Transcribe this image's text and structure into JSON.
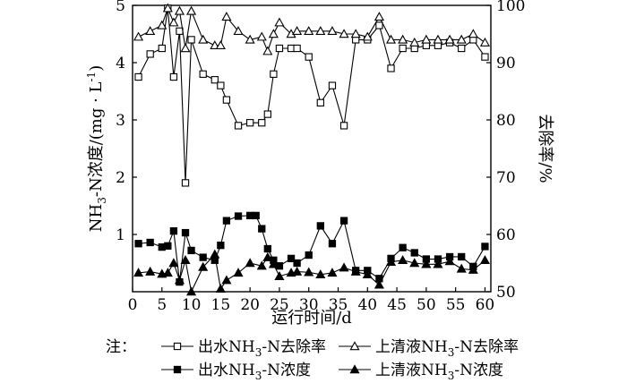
{
  "chart_data": {
    "type": "line",
    "xlabel": "运行时间/d",
    "ylabel_left": "NH3-N浓度/(mg·L⁻¹)",
    "ylabel_left_parts": {
      "a": "NH",
      "sub": "3",
      "b": "-N浓度/(mg · L",
      "sup": "-1",
      "c": ")"
    },
    "ylabel_right": "去除率/%",
    "xlim": [
      0,
      61
    ],
    "xticks": [
      "0",
      "5",
      "10",
      "15",
      "20",
      "25",
      "30",
      "35",
      "40",
      "45",
      "50",
      "55",
      "60"
    ],
    "xtick_values": [
      0,
      5,
      10,
      15,
      20,
      25,
      30,
      35,
      40,
      45,
      50,
      55,
      60
    ],
    "ylim_left": [
      0,
      5
    ],
    "yticks_left": [
      "1",
      "2",
      "3",
      "4",
      "5"
    ],
    "ytick_left_values": [
      1,
      2,
      3,
      4,
      5
    ],
    "ylim_right": [
      50,
      100
    ],
    "yticks_right": [
      "50",
      "60",
      "70",
      "80",
      "90",
      "100"
    ],
    "ytick_right_values": [
      50,
      60,
      70,
      80,
      90,
      100
    ],
    "legend_prefix": "注：",
    "legend_position": "bottom",
    "series": [
      {
        "name": "出水NH3-N去除率",
        "label_parts": {
          "a": "出水NH",
          "sub": "3",
          "b": "-N去除率"
        },
        "axis": "right",
        "marker": "square-open",
        "x": [
          1,
          3,
          5,
          6,
          7,
          8,
          9,
          10,
          12,
          14,
          15,
          16,
          18,
          20,
          22,
          23,
          24,
          25,
          27,
          28,
          30,
          32,
          34,
          36,
          38,
          40,
          42,
          44,
          46,
          48,
          50,
          52,
          54,
          56,
          58,
          60
        ],
        "y": [
          87.5,
          91.5,
          92.5,
          99.5,
          87.5,
          95.5,
          69,
          94,
          88,
          87,
          86,
          83.5,
          79,
          79.5,
          79.5,
          81,
          88,
          92.5,
          92.5,
          92.5,
          91,
          83,
          86,
          79,
          94,
          94,
          96.5,
          89,
          92.5,
          92.5,
          93,
          93,
          93.5,
          92.5,
          94,
          91
        ]
      },
      {
        "name": "上清液NH3-N去除率",
        "label_parts": {
          "a": "上清液NH",
          "sub": "3",
          "b": "-N去除率"
        },
        "axis": "right",
        "marker": "triangle-open",
        "x": [
          1,
          3,
          5,
          6,
          7,
          8,
          9,
          10,
          12,
          14,
          15,
          16,
          18,
          20,
          22,
          23,
          24,
          25,
          27,
          28,
          30,
          32,
          34,
          36,
          38,
          40,
          42,
          44,
          46,
          48,
          50,
          52,
          54,
          56,
          58,
          60
        ],
        "y": [
          94.5,
          95.5,
          96.5,
          99.5,
          97,
          99,
          92.5,
          99,
          94,
          93,
          93,
          98,
          95.5,
          94,
          94.5,
          92,
          95,
          97,
          95,
          95.5,
          95.5,
          95.5,
          95.5,
          95,
          95,
          94.5,
          98,
          94,
          94,
          93.5,
          94,
          94,
          94,
          94,
          95,
          93.5
        ]
      },
      {
        "name": "出水NH3-N浓度",
        "label_parts": {
          "a": "出水NH",
          "sub": "3",
          "b": "-N浓度"
        },
        "axis": "left",
        "marker": "square-filled",
        "x": [
          1,
          3,
          5,
          6,
          7,
          8,
          9,
          10,
          12,
          14,
          15,
          16,
          18,
          20,
          21,
          22,
          23,
          24,
          25,
          27,
          28,
          30,
          32,
          34,
          36,
          38,
          40,
          42,
          44,
          46,
          48,
          50,
          52,
          54,
          56,
          58,
          60
        ],
        "y": [
          0.84,
          0.86,
          0.78,
          0.8,
          1.06,
          0.17,
          1.03,
          0.72,
          0.6,
          0.55,
          0.81,
          1.24,
          1.32,
          1.33,
          1.33,
          1.1,
          0.75,
          0.55,
          0.45,
          0.58,
          0.5,
          0.64,
          1.15,
          0.84,
          1.24,
          0.37,
          0.37,
          0.23,
          0.58,
          0.77,
          0.68,
          0.57,
          0.57,
          0.61,
          0.61,
          0.44,
          0.79
        ]
      },
      {
        "name": "上清液NH3-N浓度",
        "label_parts": {
          "a": "上清液NH",
          "sub": "3",
          "b": "-N浓度"
        },
        "axis": "left",
        "marker": "triangle-filled",
        "x": [
          1,
          3,
          5,
          6,
          7,
          8,
          9,
          10,
          12,
          14,
          15,
          16,
          18,
          20,
          22,
          23,
          24,
          25,
          27,
          28,
          30,
          32,
          34,
          36,
          38,
          40,
          42,
          44,
          46,
          48,
          50,
          52,
          54,
          56,
          58,
          60
        ],
        "y": [
          0.33,
          0.35,
          0.31,
          0.33,
          0.5,
          0.2,
          0.55,
          0,
          0.43,
          0.65,
          0.05,
          0.2,
          0.33,
          0.5,
          0.45,
          0.6,
          0.48,
          0.27,
          0.33,
          0.35,
          0.34,
          0.3,
          0.33,
          0.42,
          0.35,
          0.3,
          0.12,
          0.52,
          0.55,
          0.5,
          0.48,
          0.48,
          0.53,
          0.4,
          0.38,
          0.55
        ]
      }
    ]
  }
}
